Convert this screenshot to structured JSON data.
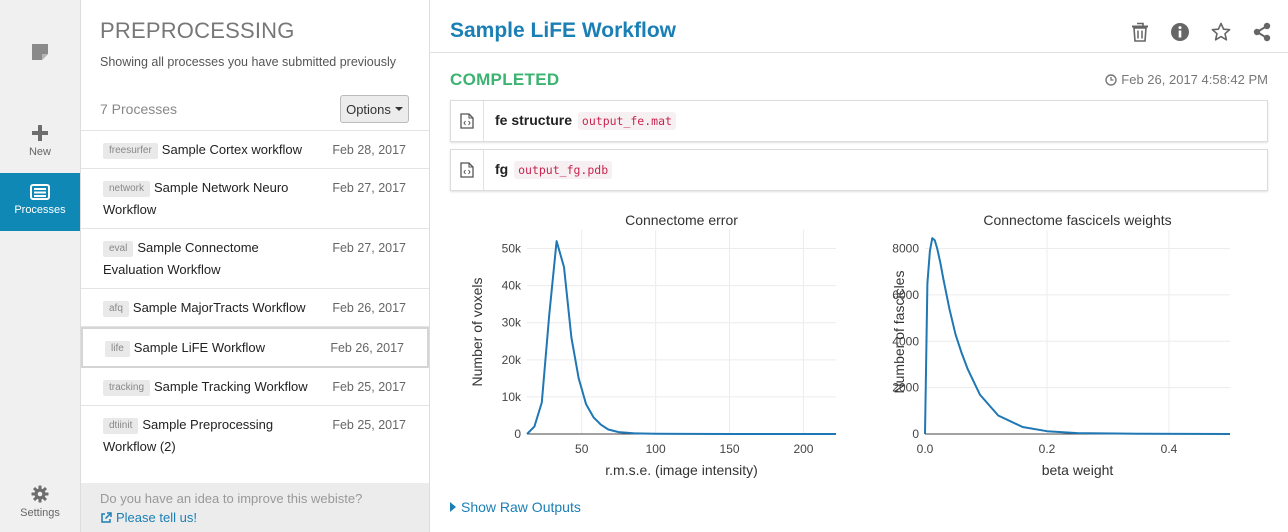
{
  "rail": {
    "items": [
      {
        "label": "",
        "icon": "note-icon"
      },
      {
        "label": "New",
        "icon": "plus-icon"
      },
      {
        "label": "Processes",
        "icon": "list-icon"
      },
      {
        "label": "Settings",
        "icon": "gear-icon"
      }
    ]
  },
  "list": {
    "title": "PREPROCESSING",
    "subtitle": "Showing all processes you have submitted previously",
    "count": "7 Processes",
    "options_label": "Options",
    "processes": [
      {
        "tag": "freesurfer",
        "name": "Sample Cortex workflow",
        "date": "Feb 28, 2017"
      },
      {
        "tag": "network",
        "name": "Sample Network Neuro Workflow",
        "date": "Feb 27, 2017"
      },
      {
        "tag": "eval",
        "name": "Sample Connectome Evaluation Workflow",
        "date": "Feb 27, 2017"
      },
      {
        "tag": "afq",
        "name": "Sample MajorTracts Workflow",
        "date": "Feb 26, 2017"
      },
      {
        "tag": "life",
        "name": "Sample LiFE Workflow",
        "date": "Feb 26, 2017"
      },
      {
        "tag": "tracking",
        "name": "Sample Tracking Workflow",
        "date": "Feb 25, 2017"
      },
      {
        "tag": "dtiinit",
        "name": "Sample Preprocessing Workflow (2)",
        "date": "Feb 25, 2017"
      }
    ],
    "footer_question": "Do you have an idea to improve this webiste?",
    "footer_link": "Please tell us!"
  },
  "main": {
    "title": "Sample LiFE Workflow",
    "status": "COMPLETED",
    "timestamp": "Feb 26, 2017 4:58:42 PM",
    "outputs": [
      {
        "name": "fe structure",
        "file": "output_fe.mat"
      },
      {
        "name": "fg",
        "file": "output_fg.pdb"
      }
    ],
    "raw_outputs_label": "Show Raw Outputs",
    "accent": "#1a7fb5",
    "status_color": "#3cb371"
  },
  "chart_data": [
    {
      "type": "line",
      "title": "Connectome error",
      "xlabel": "r.m.s.e. (image intensity)",
      "ylabel": "Number of voxels",
      "xlim": [
        13,
        222
      ],
      "ylim": [
        0,
        55000
      ],
      "xticks": [
        50,
        100,
        150,
        200
      ],
      "yticks": [
        0,
        10000,
        20000,
        30000,
        40000,
        50000
      ],
      "ytick_labels": [
        "0",
        "10k",
        "20k",
        "30k",
        "40k",
        "50k"
      ],
      "grid": true,
      "color": "#1f77b4",
      "x": [
        13,
        18,
        23,
        28,
        33,
        38,
        43,
        48,
        53,
        58,
        63,
        68,
        75,
        85,
        100,
        120,
        150,
        180,
        222
      ],
      "y": [
        0,
        2000,
        8500,
        32000,
        52000,
        45000,
        26000,
        15000,
        8000,
        4500,
        2500,
        1200,
        500,
        200,
        80,
        30,
        10,
        5,
        0
      ]
    },
    {
      "type": "line",
      "title": "Connectome fascicels weights",
      "xlabel": "beta weight",
      "ylabel": "Number of fascicles",
      "xlim": [
        0,
        0.5
      ],
      "ylim": [
        0,
        8800
      ],
      "xticks": [
        0,
        0.2,
        0.4
      ],
      "yticks": [
        0,
        2000,
        4000,
        6000,
        8000
      ],
      "ytick_labels": [
        "0",
        "2000",
        "4000",
        "6000",
        "8000"
      ],
      "grid": true,
      "color": "#1f77b4",
      "x": [
        0,
        0.004,
        0.008,
        0.012,
        0.016,
        0.02,
        0.025,
        0.03,
        0.04,
        0.05,
        0.06,
        0.07,
        0.09,
        0.12,
        0.16,
        0.2,
        0.25,
        0.35,
        0.5
      ],
      "y": [
        0,
        6500,
        7900,
        8450,
        8350,
        8000,
        7400,
        6700,
        5400,
        4300,
        3500,
        2800,
        1700,
        800,
        300,
        120,
        40,
        10,
        0
      ]
    }
  ]
}
